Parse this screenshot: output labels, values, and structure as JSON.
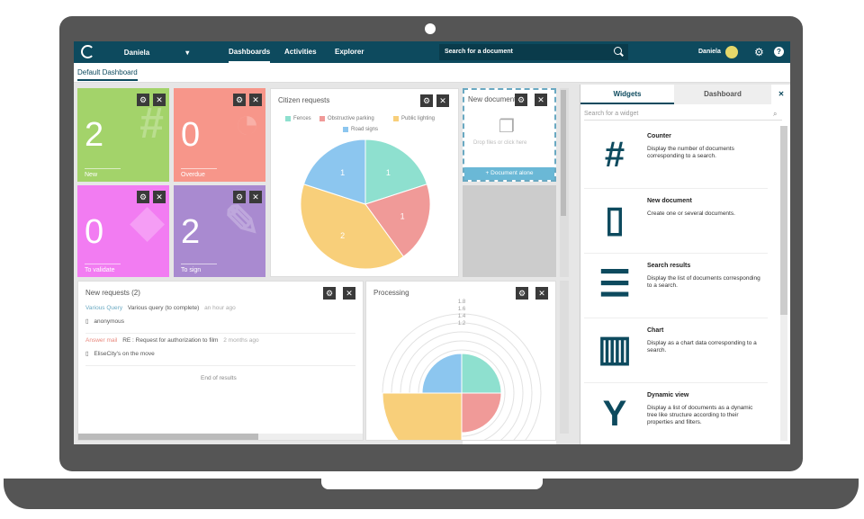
{
  "topbar": {
    "user_dropdown": "Daniela",
    "nav": [
      "Dashboards",
      "Activities",
      "Explorer"
    ],
    "search_placeholder": "Search for a document",
    "user_name": "Daniela"
  },
  "subbar": {
    "tab": "Default Dashboard"
  },
  "counters": [
    {
      "value": "2",
      "label": "New",
      "color": "#a3d36a"
    },
    {
      "value": "0",
      "label": "Overdue",
      "color": "#f7968a"
    },
    {
      "value": "0",
      "label": "To validate",
      "color": "#f27cf2"
    },
    {
      "value": "2",
      "label": "To sign",
      "color": "#a98ad0"
    }
  ],
  "citizen": {
    "title": "Citizen requests",
    "legend": [
      {
        "name": "Fences",
        "color": "#8ee0cf"
      },
      {
        "name": "Obstructive parking",
        "color": "#f09a98"
      },
      {
        "name": "Public lighting",
        "color": "#f8cf7a"
      },
      {
        "name": "Road signs",
        "color": "#8cc6ef"
      }
    ]
  },
  "chart_data": [
    {
      "type": "pie",
      "title": "Citizen requests",
      "categories": [
        "Fences",
        "Obstructive parking",
        "Public lighting",
        "Road signs"
      ],
      "values": [
        1,
        1,
        2,
        1
      ],
      "colors": [
        "#8ee0cf",
        "#f09a98",
        "#f8cf7a",
        "#8cc6ef"
      ]
    },
    {
      "type": "pie",
      "title": "Processing",
      "ticks": [
        "1.8",
        "1.6",
        "1.4",
        "1.2"
      ]
    }
  ],
  "new_doc": {
    "title": "New document",
    "drop": "Drop files or click here",
    "button": "+ Document alone"
  },
  "requests": {
    "title": "New requests (2)",
    "items": [
      {
        "type": "Various Query",
        "subject": "Various query (to complete)",
        "time": "an hour ago",
        "author": "anonymous"
      },
      {
        "type": "Answer mail",
        "subject": "RE : Request for authorization to film",
        "time": "2 months ago",
        "author": "EliseCity's on the move"
      }
    ],
    "end": "End of results"
  },
  "processing": {
    "title": "Processing"
  },
  "sidebar": {
    "tabs": [
      "Widgets",
      "Dashboard"
    ],
    "search_placeholder": "Search for a widget",
    "widgets": [
      {
        "title": "Counter",
        "desc": "Display the number of documents corresponding to a search.",
        "icon": "hash-icon"
      },
      {
        "title": "New document",
        "desc": "Create one or several documents.",
        "icon": "document-icon"
      },
      {
        "title": "Search results",
        "desc": "Display the list of documents corresponding to a search.",
        "icon": "list-icon"
      },
      {
        "title": "Chart",
        "desc": "Display as a chart data corresponding to a search.",
        "icon": "bar-chart-icon"
      },
      {
        "title": "Dynamic view",
        "desc": "Display a list of documents as a dynamic tree like structure according to their properties and filters.",
        "icon": "branch-icon"
      }
    ]
  }
}
